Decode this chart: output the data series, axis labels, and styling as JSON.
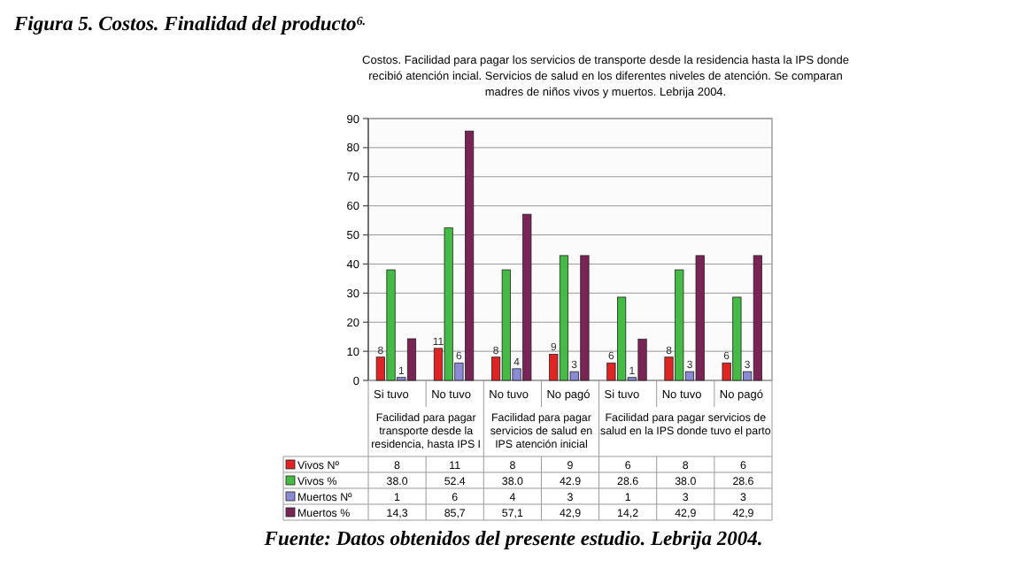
{
  "chart_data": {
    "type": "bar",
    "title": "Figura 5. Costos. Finalidad del producto$^{6.}$",
    "subtitle": "Costos. Facilidad para pagar los servicios de transporte desde la residencia hasta la IPS donde\nrecibió atención incial. Servicios de salud en los diferentes niveles de atención. Se comparan\nmadres de niños vivos y muertos. Lebrija 2004.",
    "categories": [
      "Si tuvo",
      "No tuvo",
      "No tuvo",
      "No pagó",
      "Si tuvo",
      "No tuvo",
      "No pagó"
    ],
    "series": [
      {
        "name": "Vivos Nº",
        "color": "#e02424",
        "values": [
          8,
          11,
          8,
          9,
          6,
          8,
          6
        ],
        "value_labels": [
          "8",
          "11",
          "8",
          "9",
          "6",
          "8",
          "6"
        ]
      },
      {
        "name": "Vivos %",
        "color": "#44bb44",
        "values": [
          38.0,
          52.4,
          38.0,
          42.9,
          28.6,
          38.0,
          28.6
        ],
        "value_labels": [
          "38.0",
          "52.4",
          "38.0",
          "42.9",
          "28.6",
          "38.0",
          "28.6"
        ]
      },
      {
        "name": "Muertos Nº",
        "color": "#8a8ad6",
        "values": [
          1,
          6,
          4,
          3,
          1,
          3,
          3
        ],
        "value_labels": [
          "1",
          "6",
          "4",
          "3",
          "1",
          "3",
          "3"
        ]
      },
      {
        "name": "Muertos %",
        "color": "#7a2456",
        "values": [
          14.3,
          85.7,
          57.1,
          42.9,
          14.2,
          42.9,
          42.9
        ],
        "value_labels": [
          "14,3",
          "85,7",
          "57,1",
          "42,9",
          "14,2",
          "42,9",
          "42,9"
        ]
      }
    ],
    "data_labels": true,
    "ylim": [
      0,
      90
    ],
    "yticks": [
      0,
      10,
      20,
      30,
      40,
      50,
      60,
      70,
      80,
      90
    ],
    "grid": "y",
    "legend": "bottom",
    "annotations": [
      "Facilidad para pagar\ntransporte desde la\nresidencia, hasta IPS I",
      "Facilidad para pagar\nservicios de salud en\nIPS  atención inicial",
      "Facilidad para pagar servicios de\nsalud en la IPS donde tuvo el parto",
      "Fuente: Datos obtenidos del presente estudio. Lebrija 2004."
    ]
  }
}
